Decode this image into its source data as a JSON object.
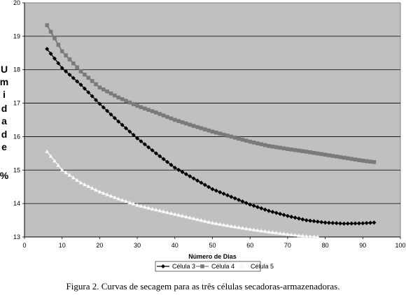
{
  "caption": "Figura 2. Curvas de secagem para as três células secadoras-armazenadoras.",
  "chart_data": {
    "type": "line",
    "title": "",
    "xlabel": "Número de Dias",
    "ylabel": "Umidade %",
    "ylabel_chars": [
      "U",
      "m",
      "i",
      "d",
      "a",
      "d",
      "e",
      "%"
    ],
    "xlim": [
      0,
      100
    ],
    "ylim": [
      13,
      20
    ],
    "xticks": [
      0,
      10,
      20,
      30,
      40,
      50,
      60,
      70,
      80,
      90,
      100
    ],
    "yticks": [
      13,
      14,
      15,
      16,
      17,
      18,
      19,
      20
    ],
    "grid": "horizontal",
    "legend_position": "bottom",
    "plot_background": "#c0c0c0",
    "series": [
      {
        "name": "Célula 3",
        "color": "#000000",
        "marker": "diamond",
        "x": [
          6,
          10,
          15,
          20,
          25,
          30,
          35,
          40,
          45,
          50,
          55,
          60,
          65,
          70,
          75,
          80,
          85,
          90,
          93
        ],
        "y": [
          18.62,
          18.05,
          17.55,
          16.98,
          16.45,
          15.95,
          15.5,
          15.07,
          14.75,
          14.43,
          14.2,
          13.97,
          13.78,
          13.63,
          13.5,
          13.43,
          13.4,
          13.41,
          13.43
        ]
      },
      {
        "name": "Célula 4",
        "color": "#7a7a7a",
        "marker": "square",
        "x": [
          6,
          10,
          15,
          20,
          25,
          30,
          35,
          40,
          45,
          50,
          55,
          60,
          65,
          70,
          75,
          80,
          85,
          90,
          93
        ],
        "y": [
          19.33,
          18.55,
          17.95,
          17.47,
          17.17,
          16.92,
          16.72,
          16.5,
          16.32,
          16.15,
          16.0,
          15.85,
          15.72,
          15.63,
          15.55,
          15.46,
          15.37,
          15.28,
          15.24
        ]
      },
      {
        "name": "Célula 5",
        "color": "#ffffff",
        "marker": "triangle",
        "x": [
          6,
          10,
          15,
          20,
          25,
          30,
          35,
          40,
          45,
          50,
          55,
          60,
          65,
          70,
          75,
          78
        ],
        "y": [
          15.55,
          15.0,
          14.62,
          14.35,
          14.14,
          13.95,
          13.81,
          13.68,
          13.55,
          13.42,
          13.32,
          13.23,
          13.15,
          13.08,
          13.02,
          13.0
        ]
      }
    ]
  }
}
